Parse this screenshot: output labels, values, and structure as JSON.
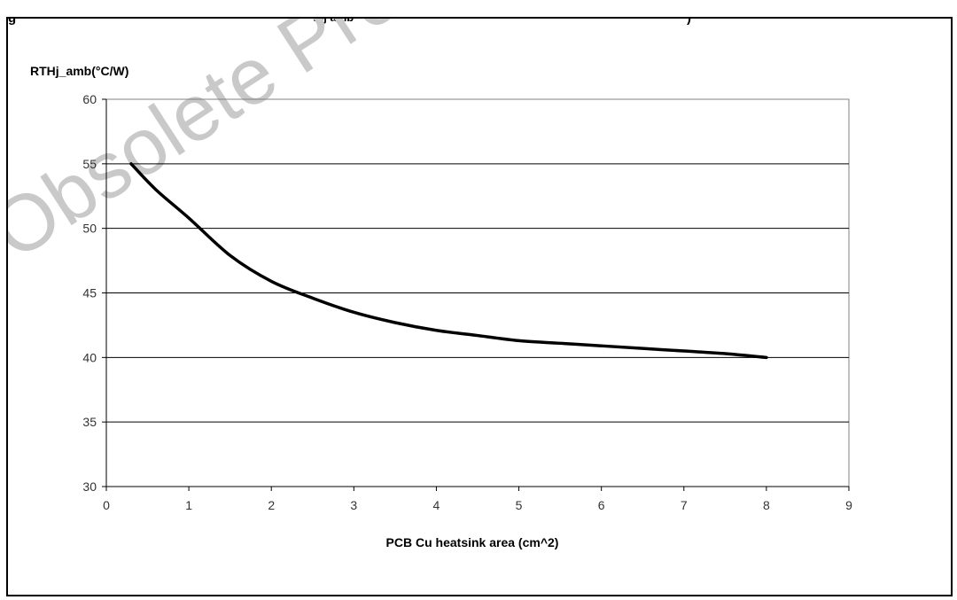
{
  "figure": {
    "caption_left": "g",
    "caption_sub": "thj amb",
    "caption_right": ")"
  },
  "watermark": {
    "text": "Obsolete Product(s) - Obsolete Product(s)"
  },
  "chart_data": {
    "type": "line",
    "ylabel": "RTHj_amb(°C/W)",
    "xlabel": "PCB Cu heatsink area (cm^2)",
    "xlim": [
      0,
      9
    ],
    "ylim": [
      30,
      60
    ],
    "xticks": [
      0,
      1,
      2,
      3,
      4,
      5,
      6,
      7,
      8,
      9
    ],
    "yticks": [
      30,
      35,
      40,
      45,
      50,
      55,
      60
    ],
    "grid": "horizontal",
    "legend": "none",
    "line_color": "#000000",
    "series": [
      {
        "x": [
          0.3,
          0.6,
          1.0,
          1.5,
          2.0,
          2.5,
          3.0,
          3.5,
          4.0,
          4.5,
          5.0,
          5.5,
          6.0,
          6.5,
          7.0,
          7.5,
          8.0
        ],
        "y": [
          55.0,
          53.0,
          50.8,
          47.9,
          45.9,
          44.6,
          43.5,
          42.7,
          42.1,
          41.7,
          41.3,
          41.1,
          40.9,
          40.7,
          40.5,
          40.3,
          40.0
        ]
      }
    ]
  }
}
